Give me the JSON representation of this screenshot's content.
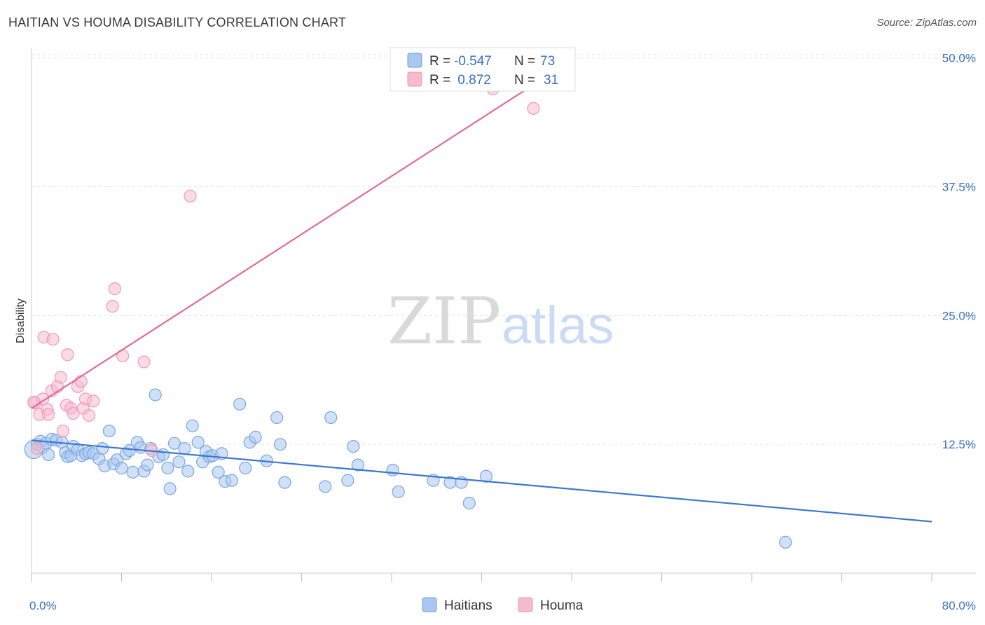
{
  "header": {
    "title": "HAITIAN VS HOUMA DISABILITY CORRELATION CHART",
    "source": "Source: ZipAtlas.com"
  },
  "watermark": {
    "zip": "ZIP",
    "atlas": "atlas"
  },
  "colors": {
    "blue": "#3a78d0",
    "blue_fill": "#a9c7ef",
    "pink": "#e36b95",
    "pink_fill": "#f5bcd0",
    "axis_label": "#3a6fc4"
  },
  "legend_top": {
    "rows": [
      {
        "r_label": "R =",
        "r_value": "-0.547",
        "n_label": "N =",
        "n_value": "73"
      },
      {
        "r_label": "R =",
        "r_value": " 0.872",
        "n_label": "N =",
        "n_value": "31"
      }
    ]
  },
  "legend_bottom": {
    "items": [
      "Haitians",
      "Houma"
    ]
  },
  "chart_data": {
    "type": "scatter",
    "title": "HAITIAN VS HOUMA DISABILITY CORRELATION CHART",
    "xlabel": "",
    "ylabel": "Disability",
    "xlim": [
      0,
      80
    ],
    "ylim": [
      0,
      51
    ],
    "x_tick_labels": [
      "0.0%",
      "80.0%"
    ],
    "y_ticks": [
      12.5,
      25.0,
      37.5,
      50.0
    ],
    "y_tick_labels": [
      "12.5%",
      "25.0%",
      "37.5%",
      "50.0%"
    ],
    "grid": true,
    "legend_position": "top-center",
    "series": [
      {
        "name": "Haitians",
        "color": "#3a78d0",
        "r": -0.547,
        "n": 73,
        "trend": {
          "x": [
            0,
            80
          ],
          "y": [
            12.9,
            5.0
          ]
        },
        "points": [
          [
            0.2,
            12.0
          ],
          [
            0.5,
            12.5
          ],
          [
            0.8,
            12.8
          ],
          [
            1.0,
            12.2
          ],
          [
            1.3,
            12.6
          ],
          [
            1.5,
            11.5
          ],
          [
            1.8,
            13.0
          ],
          [
            2.2,
            12.9
          ],
          [
            2.7,
            12.7
          ],
          [
            3.0,
            11.7
          ],
          [
            3.2,
            11.3
          ],
          [
            3.5,
            11.4
          ],
          [
            3.7,
            12.3
          ],
          [
            4.1,
            12.0
          ],
          [
            4.5,
            11.4
          ],
          [
            4.8,
            11.6
          ],
          [
            5.1,
            11.7
          ],
          [
            5.5,
            11.6
          ],
          [
            6.0,
            11.1
          ],
          [
            6.3,
            12.1
          ],
          [
            6.5,
            10.4
          ],
          [
            6.9,
            13.8
          ],
          [
            7.3,
            10.6
          ],
          [
            7.6,
            11.0
          ],
          [
            8.0,
            10.2
          ],
          [
            8.4,
            11.6
          ],
          [
            8.7,
            11.9
          ],
          [
            9.0,
            9.8
          ],
          [
            9.4,
            12.7
          ],
          [
            9.7,
            12.2
          ],
          [
            10.0,
            9.9
          ],
          [
            10.3,
            10.5
          ],
          [
            10.6,
            12.1
          ],
          [
            11.0,
            17.3
          ],
          [
            11.3,
            11.3
          ],
          [
            11.7,
            11.5
          ],
          [
            12.1,
            10.2
          ],
          [
            12.3,
            8.2
          ],
          [
            12.7,
            12.6
          ],
          [
            13.1,
            10.8
          ],
          [
            13.6,
            12.1
          ],
          [
            13.9,
            9.9
          ],
          [
            14.3,
            14.3
          ],
          [
            14.8,
            12.7
          ],
          [
            15.2,
            10.8
          ],
          [
            15.5,
            11.8
          ],
          [
            15.8,
            11.3
          ],
          [
            16.1,
            11.4
          ],
          [
            16.6,
            9.8
          ],
          [
            16.9,
            11.6
          ],
          [
            17.2,
            8.9
          ],
          [
            17.8,
            9.0
          ],
          [
            18.5,
            16.4
          ],
          [
            19.0,
            10.2
          ],
          [
            19.4,
            12.7
          ],
          [
            19.9,
            13.2
          ],
          [
            20.9,
            10.9
          ],
          [
            21.8,
            15.1
          ],
          [
            22.1,
            12.5
          ],
          [
            22.5,
            8.8
          ],
          [
            26.1,
            8.4
          ],
          [
            26.6,
            15.1
          ],
          [
            28.1,
            9.0
          ],
          [
            28.6,
            12.3
          ],
          [
            29.0,
            10.5
          ],
          [
            32.1,
            10.0
          ],
          [
            32.6,
            7.9
          ],
          [
            35.7,
            9.0
          ],
          [
            37.2,
            8.8
          ],
          [
            38.2,
            8.8
          ],
          [
            38.9,
            6.8
          ],
          [
            40.4,
            9.4
          ],
          [
            67.0,
            3.0
          ]
        ]
      },
      {
        "name": "Houma",
        "color": "#e36b95",
        "r": 0.872,
        "n": 31,
        "trend": {
          "x": [
            0,
            48.3
          ],
          "y": [
            16.0,
            50.0
          ]
        },
        "points": [
          [
            0.3,
            16.5
          ],
          [
            0.5,
            12.1
          ],
          [
            0.7,
            15.4
          ],
          [
            1.0,
            16.9
          ],
          [
            1.1,
            22.9
          ],
          [
            1.4,
            15.9
          ],
          [
            1.5,
            15.4
          ],
          [
            1.8,
            17.7
          ],
          [
            1.9,
            22.7
          ],
          [
            2.3,
            18.1
          ],
          [
            2.6,
            19.0
          ],
          [
            2.8,
            13.8
          ],
          [
            3.1,
            16.3
          ],
          [
            3.2,
            21.2
          ],
          [
            3.5,
            16.0
          ],
          [
            3.7,
            15.5
          ],
          [
            4.1,
            18.1
          ],
          [
            4.4,
            18.6
          ],
          [
            4.6,
            16.0
          ],
          [
            4.8,
            16.9
          ],
          [
            5.1,
            15.3
          ],
          [
            5.5,
            16.7
          ],
          [
            7.2,
            25.9
          ],
          [
            7.4,
            27.6
          ],
          [
            8.1,
            21.1
          ],
          [
            10.0,
            20.5
          ],
          [
            10.7,
            11.9
          ],
          [
            14.1,
            36.6
          ],
          [
            41.0,
            47.0
          ],
          [
            44.6,
            45.1
          ],
          [
            0.2,
            16.6
          ]
        ]
      }
    ]
  }
}
